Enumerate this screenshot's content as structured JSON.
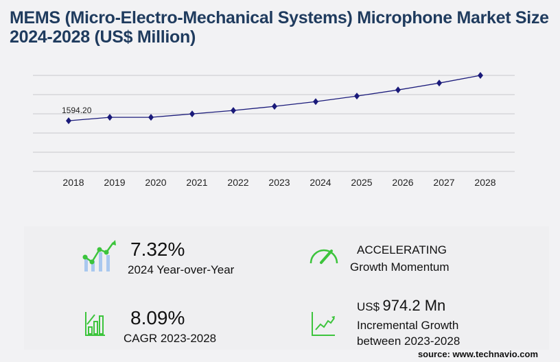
{
  "title": "MEMS (Micro-Electro-Mechanical Systems) Microphone Market Size 2024-2028 (US$ Million)",
  "chart_data": {
    "type": "line",
    "categories": [
      "2018",
      "2019",
      "2020",
      "2021",
      "2022",
      "2023",
      "2024",
      "2025",
      "2026",
      "2027",
      "2028"
    ],
    "values": [
      1594.2,
      1702,
      1702,
      1809,
      1917,
      2045.8,
      2195.5,
      2370,
      2563,
      2779,
      3020
    ],
    "data_labels": {
      "2018": "1594.20"
    },
    "ylim": [
      0,
      3020
    ],
    "grid": true,
    "line_color": "#1a1a7a"
  },
  "stats": {
    "yoy_value": "7.32%",
    "yoy_label": "2024 Year-over-Year",
    "momentum_value": "ACCELERATING",
    "momentum_label": "Growth Momentum",
    "cagr_value": "8.09%",
    "cagr_label": "CAGR 2023-2028",
    "incr_prefix": "US$",
    "incr_value": "974.2 Mn",
    "incr_label_1": "Incremental Growth",
    "incr_label_2": "between 2023-2028"
  },
  "source": "source: www.technavio.com",
  "colors": {
    "title": "#1f3b5e",
    "icon_green": "#3cc43c",
    "icon_blue": "#a9c8ef"
  }
}
